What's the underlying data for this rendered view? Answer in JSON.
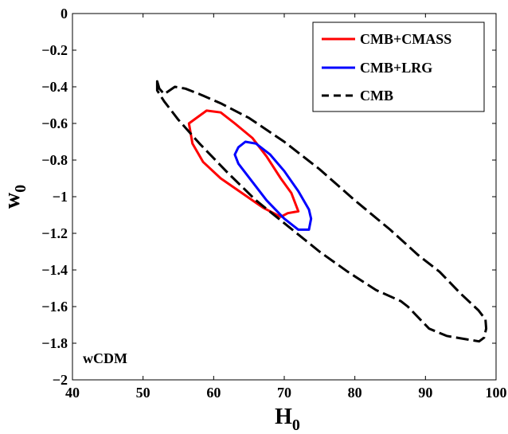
{
  "chart_data": {
    "type": "line",
    "xlabel": "H",
    "xlabel_sub": "0",
    "ylabel": "w",
    "ylabel_sub": "0",
    "xlim": [
      40,
      100
    ],
    "ylim": [
      -2,
      0
    ],
    "xticks": [
      40,
      50,
      60,
      70,
      80,
      90,
      100
    ],
    "yticks": [
      0,
      -0.2,
      -0.4,
      -0.6,
      -0.8,
      -1,
      -1.2,
      -1.4,
      -1.6,
      -1.8,
      -2
    ],
    "xtick_labels": [
      "40",
      "50",
      "60",
      "70",
      "80",
      "90",
      "100"
    ],
    "ytick_labels": [
      "0",
      "−0.2",
      "−0.4",
      "−0.6",
      "−0.8",
      "−1",
      "−1.2",
      "−1.4",
      "−1.6",
      "−1.8",
      "−2"
    ],
    "annotation": "wCDM",
    "legend_position": "top-right",
    "series": [
      {
        "name": "CMB+CMASS",
        "color": "#ff0000",
        "style": "solid",
        "closed": true,
        "points": [
          [
            56.5,
            -0.6
          ],
          [
            59,
            -0.53
          ],
          [
            61,
            -0.54
          ],
          [
            63,
            -0.6
          ],
          [
            65.5,
            -0.68
          ],
          [
            67.5,
            -0.78
          ],
          [
            69.5,
            -0.9
          ],
          [
            71,
            -0.98
          ],
          [
            72,
            -1.08
          ],
          [
            70.5,
            -1.09
          ],
          [
            69.5,
            -1.11
          ],
          [
            67,
            -1.06
          ],
          [
            64,
            -0.98
          ],
          [
            61,
            -0.9
          ],
          [
            58.5,
            -0.81
          ],
          [
            57,
            -0.71
          ],
          [
            56.5,
            -0.6
          ]
        ]
      },
      {
        "name": "CMB+LRG",
        "color": "#0000ff",
        "style": "solid",
        "closed": true,
        "points": [
          [
            63.5,
            -0.73
          ],
          [
            64.5,
            -0.7
          ],
          [
            66,
            -0.71
          ],
          [
            68,
            -0.77
          ],
          [
            70,
            -0.86
          ],
          [
            72,
            -0.97
          ],
          [
            73.5,
            -1.07
          ],
          [
            73.8,
            -1.12
          ],
          [
            73.5,
            -1.18
          ],
          [
            72,
            -1.18
          ],
          [
            70,
            -1.12
          ],
          [
            67.5,
            -1.02
          ],
          [
            65.5,
            -0.92
          ],
          [
            63.5,
            -0.82
          ],
          [
            63,
            -0.77
          ],
          [
            63.5,
            -0.73
          ]
        ]
      },
      {
        "name": "CMB",
        "color": "#000000",
        "style": "dashed",
        "closed": true,
        "points": [
          [
            52,
            -0.37
          ],
          [
            52.3,
            -0.41
          ],
          [
            53,
            -0.44
          ],
          [
            54.5,
            -0.4
          ],
          [
            56,
            -0.41
          ],
          [
            58,
            -0.44
          ],
          [
            61,
            -0.49
          ],
          [
            65,
            -0.57
          ],
          [
            70,
            -0.7
          ],
          [
            75,
            -0.85
          ],
          [
            80,
            -1.02
          ],
          [
            85,
            -1.18
          ],
          [
            89,
            -1.32
          ],
          [
            92,
            -1.41
          ],
          [
            95,
            -1.53
          ],
          [
            97.5,
            -1.62
          ],
          [
            98.5,
            -1.67
          ],
          [
            98.6,
            -1.72
          ],
          [
            98.3,
            -1.77
          ],
          [
            97.6,
            -1.79
          ],
          [
            96,
            -1.78
          ],
          [
            93,
            -1.76
          ],
          [
            90.5,
            -1.72
          ],
          [
            87.5,
            -1.6
          ],
          [
            86.5,
            -1.57
          ],
          [
            83,
            -1.51
          ],
          [
            79,
            -1.41
          ],
          [
            75,
            -1.3
          ],
          [
            70.5,
            -1.16
          ],
          [
            66,
            -1.02
          ],
          [
            62,
            -0.87
          ],
          [
            58,
            -0.71
          ],
          [
            55,
            -0.58
          ],
          [
            53,
            -0.48
          ],
          [
            52,
            -0.42
          ],
          [
            52,
            -0.37
          ]
        ]
      }
    ]
  }
}
